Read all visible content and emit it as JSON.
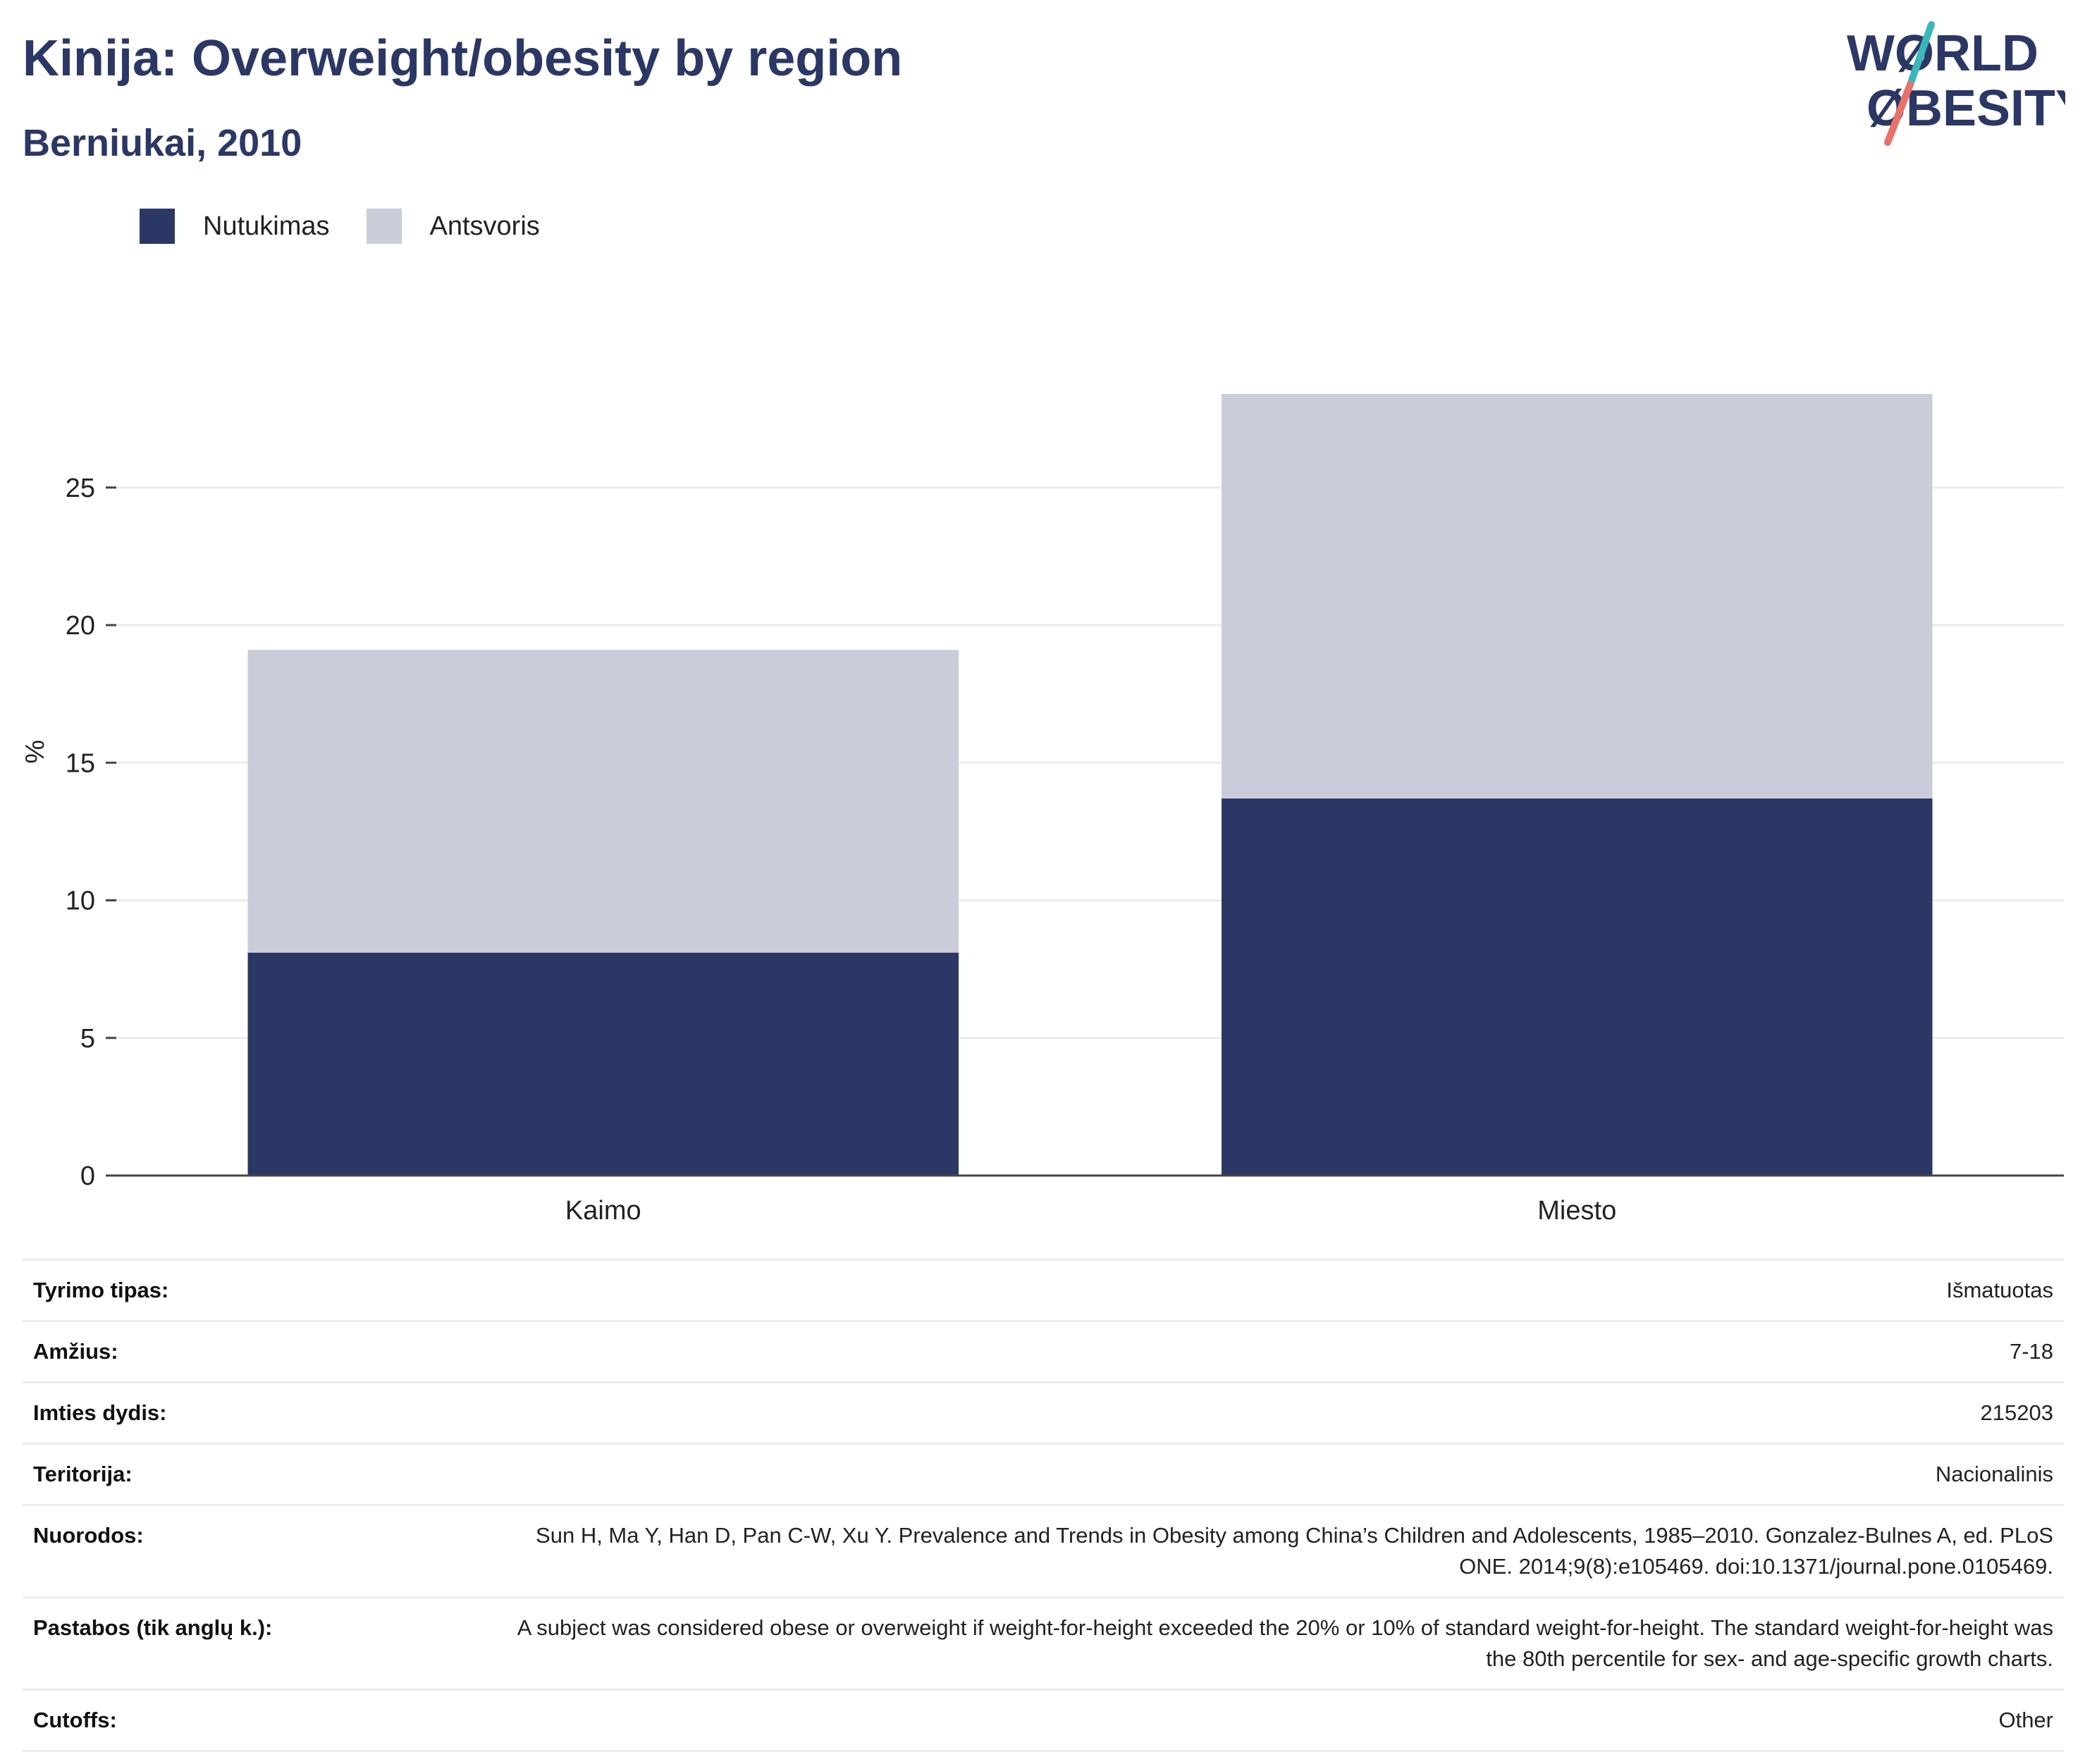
{
  "title": "Kinija: Overweight/obesity by region",
  "subtitle": "Berniukai, 2010",
  "logo": {
    "line1": "WØRLD",
    "line2": "ØBESITY",
    "text_color": "#2b3765",
    "slash_top": "#3ab7b9",
    "slash_bottom": "#e8716a"
  },
  "colors": {
    "obesity": "#2b3765",
    "overweight": "#cacdd9"
  },
  "chart_data": {
    "type": "bar",
    "stacked": true,
    "categories": [
      "Kaimo",
      "Miesto"
    ],
    "series": [
      {
        "name": "Nutukimas",
        "values": [
          8.1,
          13.7
        ]
      },
      {
        "name": "Antsvoris",
        "values": [
          11.0,
          14.7
        ]
      }
    ],
    "ylabel": "%",
    "ylim": [
      0,
      30
    ],
    "yticks": [
      0,
      5,
      10,
      15,
      20,
      25
    ],
    "grid": true,
    "legend_position": "top-left"
  },
  "meta": [
    {
      "key": "Tyrimo tipas:",
      "value": "Išmatuotas"
    },
    {
      "key": "Amžius:",
      "value": "7-18"
    },
    {
      "key": "Imties dydis:",
      "value": "215203"
    },
    {
      "key": "Teritorija:",
      "value": "Nacionalinis"
    },
    {
      "key": "Nuorodos:",
      "value": "Sun H, Ma Y, Han D, Pan C-W, Xu Y. Prevalence and Trends in Obesity among China’s Children and Adolescents, 1985–2010. Gonzalez-Bulnes A, ed. PLoS ONE. 2014;9(8):e105469. doi:10.1371/journal.pone.0105469."
    },
    {
      "key": "Pastabos (tik anglų k.):",
      "value": "A subject was considered obese or overweight if weight-for-height exceeded the 20% or 10% of standard weight-for-height. The standard weight-for-height was the 80th percentile for sex- and age-specific growth charts."
    },
    {
      "key": "Cutoffs:",
      "value": "Other"
    }
  ]
}
